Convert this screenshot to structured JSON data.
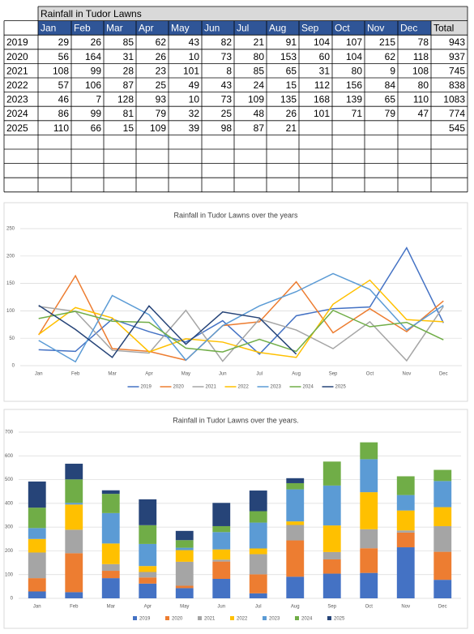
{
  "table": {
    "title": "Rainfall in Tudor Lawns",
    "header": [
      "Jan",
      "Feb",
      "Mar",
      "Apr",
      "May",
      "Jun",
      "Jul",
      "Aug",
      "Sep",
      "Oct",
      "Nov",
      "Dec",
      "Total"
    ],
    "rows": [
      [
        "2019",
        29,
        26,
        85,
        62,
        43,
        82,
        21,
        91,
        104,
        107,
        215,
        78,
        943
      ],
      [
        "2020",
        56,
        164,
        31,
        26,
        10,
        73,
        80,
        153,
        60,
        104,
        62,
        118,
        937
      ],
      [
        "2021",
        108,
        99,
        28,
        23,
        101,
        8,
        85,
        65,
        31,
        80,
        9,
        108,
        745
      ],
      [
        "2022",
        57,
        106,
        87,
        25,
        49,
        43,
        24,
        15,
        112,
        156,
        84,
        80,
        838
      ],
      [
        "2023",
        46,
        7,
        128,
        93,
        10,
        73,
        109,
        135,
        168,
        139,
        65,
        110,
        1083
      ],
      [
        "2024",
        86,
        99,
        81,
        79,
        32,
        25,
        48,
        26,
        101,
        71,
        79,
        47,
        774
      ],
      [
        "2025",
        110,
        66,
        15,
        109,
        39,
        98,
        87,
        21,
        null,
        null,
        null,
        null,
        545
      ]
    ]
  },
  "chart_data": [
    {
      "type": "line",
      "title": "Rainfall in Tudor Lawns over the years",
      "categories": [
        "Jan",
        "Feb",
        "Mar",
        "Apr",
        "May",
        "Jun",
        "Jul",
        "Aug",
        "Sep",
        "Oct",
        "Nov",
        "Dec"
      ],
      "ylim": [
        0,
        250
      ],
      "yticks": [
        0,
        50,
        100,
        150,
        200,
        250
      ],
      "grid": true,
      "legend": "bottom",
      "series": [
        {
          "name": "2019",
          "color": "#4472c4",
          "values": [
            29,
            26,
            85,
            62,
            43,
            82,
            21,
            91,
            104,
            107,
            215,
            78
          ]
        },
        {
          "name": "2020",
          "color": "#ed7d31",
          "values": [
            56,
            164,
            31,
            26,
            10,
            73,
            80,
            153,
            60,
            104,
            62,
            118
          ]
        },
        {
          "name": "2021",
          "color": "#a5a5a5",
          "values": [
            108,
            99,
            28,
            23,
            101,
            8,
            85,
            65,
            31,
            80,
            9,
            108
          ]
        },
        {
          "name": "2022",
          "color": "#ffc000",
          "values": [
            57,
            106,
            87,
            25,
            49,
            43,
            24,
            15,
            112,
            156,
            84,
            80
          ]
        },
        {
          "name": "2023",
          "color": "#5b9bd5",
          "values": [
            46,
            7,
            128,
            93,
            10,
            73,
            109,
            135,
            168,
            139,
            65,
            110
          ]
        },
        {
          "name": "2024",
          "color": "#70ad47",
          "values": [
            86,
            99,
            81,
            79,
            32,
            25,
            48,
            26,
            101,
            71,
            79,
            47
          ]
        },
        {
          "name": "2025",
          "color": "#264478",
          "values": [
            110,
            66,
            15,
            109,
            39,
            98,
            87,
            21,
            null,
            null,
            null,
            null
          ]
        }
      ]
    },
    {
      "type": "bar",
      "stacked": true,
      "title": "Rainfall in Tudor Lawns over the years.",
      "categories": [
        "Jan",
        "Feb",
        "Mar",
        "Apr",
        "May",
        "Jun",
        "Jul",
        "Aug",
        "Sep",
        "Oct",
        "Nov",
        "Dec"
      ],
      "ylim": [
        0,
        700
      ],
      "yticks": [
        0,
        100,
        200,
        300,
        400,
        500,
        600,
        700
      ],
      "grid": true,
      "legend": "bottom",
      "series": [
        {
          "name": "2019",
          "color": "#4472c4",
          "values": [
            29,
            26,
            85,
            62,
            43,
            82,
            21,
            91,
            104,
            107,
            215,
            78
          ]
        },
        {
          "name": "2020",
          "color": "#ed7d31",
          "values": [
            56,
            164,
            31,
            26,
            10,
            73,
            80,
            153,
            60,
            104,
            62,
            118
          ]
        },
        {
          "name": "2021",
          "color": "#a5a5a5",
          "values": [
            108,
            99,
            28,
            23,
            101,
            8,
            85,
            65,
            31,
            80,
            9,
            108
          ]
        },
        {
          "name": "2022",
          "color": "#ffc000",
          "values": [
            57,
            106,
            87,
            25,
            49,
            43,
            24,
            15,
            112,
            156,
            84,
            80
          ]
        },
        {
          "name": "2023",
          "color": "#5b9bd5",
          "values": [
            46,
            7,
            128,
            93,
            10,
            73,
            109,
            135,
            168,
            139,
            65,
            110
          ]
        },
        {
          "name": "2024",
          "color": "#70ad47",
          "values": [
            86,
            99,
            81,
            79,
            32,
            25,
            48,
            26,
            101,
            71,
            79,
            47
          ]
        },
        {
          "name": "2025",
          "color": "#264478",
          "values": [
            110,
            66,
            15,
            109,
            39,
            98,
            87,
            21,
            null,
            null,
            null,
            null
          ]
        }
      ]
    }
  ]
}
